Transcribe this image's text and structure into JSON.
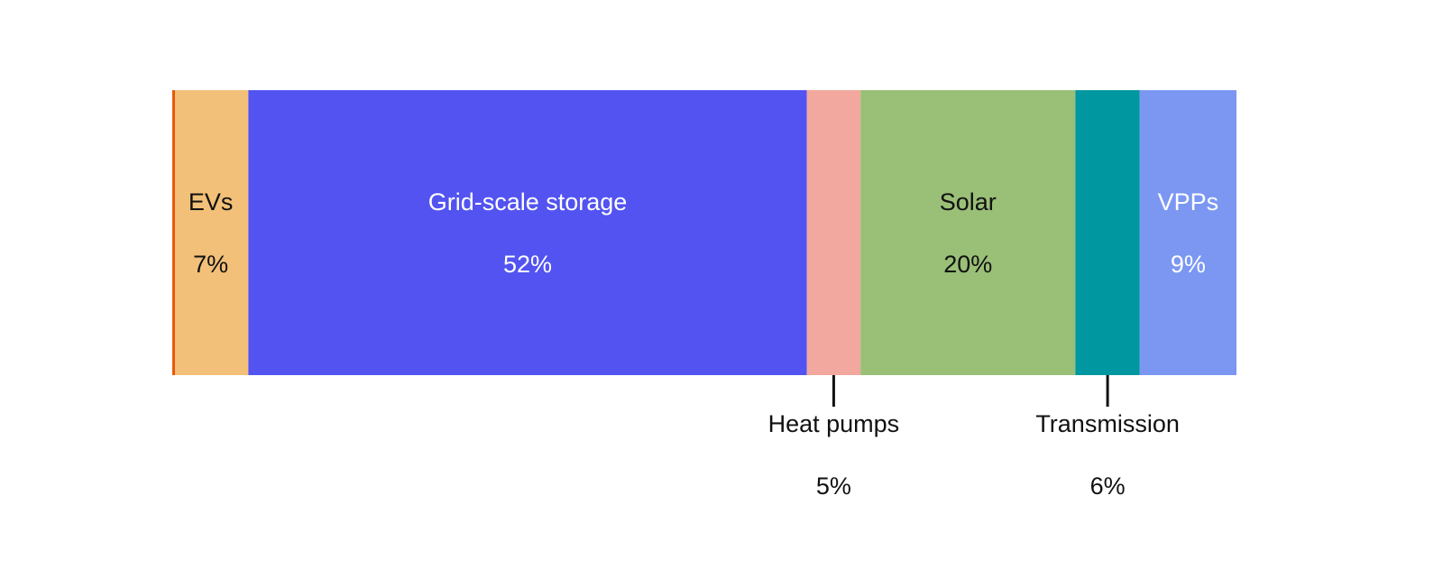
{
  "chart_data": {
    "type": "bar",
    "orientation": "horizontal-stacked",
    "title": "",
    "xlabel": "",
    "ylabel": "",
    "unit": "%",
    "grid": false,
    "legend": "none",
    "xlim": [
      0,
      99
    ],
    "accent_line_color": "#E8590C",
    "segments": [
      {
        "label": "EVs",
        "value_label": "7%",
        "value": 7,
        "color": "#F2C078",
        "text_color": "#111111",
        "label_position": "inside"
      },
      {
        "label": "Grid-scale storage",
        "value_label": "52%",
        "value": 52,
        "color": "#5253F0",
        "text_color": "#FFFFFF",
        "label_position": "inside"
      },
      {
        "label": "Heat pumps",
        "value_label": "5%",
        "value": 5,
        "color": "#F2A89E",
        "text_color": "#111111",
        "label_position": "below"
      },
      {
        "label": "Solar",
        "value_label": "20%",
        "value": 20,
        "color": "#9ABF77",
        "text_color": "#111111",
        "label_position": "inside"
      },
      {
        "label": "Transmission",
        "value_label": "6%",
        "value": 6,
        "color": "#0097A0",
        "text_color": "#111111",
        "label_position": "below"
      },
      {
        "label": "VPPs",
        "value_label": "9%",
        "value": 9,
        "color": "#7B97F2",
        "text_color": "#FFFFFF",
        "label_position": "inside"
      }
    ]
  }
}
